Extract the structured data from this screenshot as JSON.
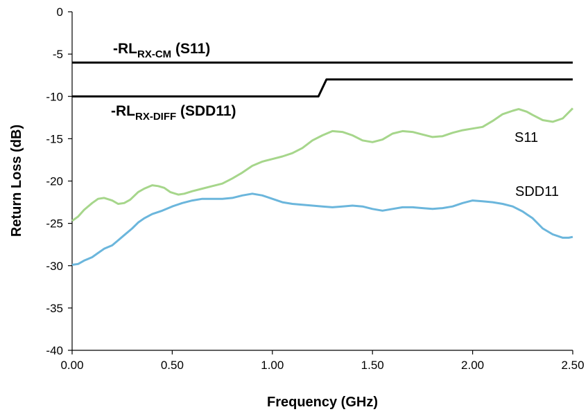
{
  "chart_data": {
    "type": "line",
    "title": "",
    "xlabel": "Frequency (GHz)",
    "ylabel": "Return Loss (dB)",
    "xlim": [
      0,
      2.5
    ],
    "ylim": [
      -40,
      0
    ],
    "grid": false,
    "x_ticks": [
      0,
      0.5,
      1.0,
      1.5,
      2.0,
      2.5
    ],
    "x_tick_labels": [
      "0.00",
      "0.50",
      "1.00",
      "1.50",
      "2.00",
      "2.50"
    ],
    "y_ticks": [
      0,
      -5,
      -10,
      -15,
      -20,
      -25,
      -30,
      -35,
      -40
    ],
    "y_tick_labels": [
      "0",
      "-5",
      "-10",
      "-15",
      "-20",
      "-25",
      "-30",
      "-35",
      "-40"
    ],
    "series": [
      {
        "name": "S11",
        "color": "#a6d68b",
        "x": [
          0.0,
          0.03,
          0.06,
          0.1,
          0.13,
          0.16,
          0.2,
          0.23,
          0.26,
          0.29,
          0.33,
          0.36,
          0.4,
          0.43,
          0.46,
          0.49,
          0.53,
          0.56,
          0.6,
          0.65,
          0.7,
          0.75,
          0.8,
          0.85,
          0.9,
          0.95,
          1.0,
          1.05,
          1.1,
          1.15,
          1.2,
          1.25,
          1.3,
          1.35,
          1.4,
          1.45,
          1.5,
          1.55,
          1.6,
          1.65,
          1.7,
          1.75,
          1.8,
          1.85,
          1.9,
          1.95,
          2.0,
          2.05,
          2.1,
          2.15,
          2.2,
          2.23,
          2.27,
          2.3,
          2.35,
          2.4,
          2.45,
          2.5
        ],
        "y": [
          -24.7,
          -24.2,
          -23.4,
          -22.6,
          -22.1,
          -22.0,
          -22.3,
          -22.7,
          -22.6,
          -22.2,
          -21.3,
          -20.9,
          -20.5,
          -20.6,
          -20.8,
          -21.3,
          -21.6,
          -21.5,
          -21.2,
          -20.9,
          -20.6,
          -20.3,
          -19.7,
          -19.0,
          -18.2,
          -17.7,
          -17.4,
          -17.1,
          -16.7,
          -16.1,
          -15.2,
          -14.6,
          -14.1,
          -14.2,
          -14.6,
          -15.2,
          -15.4,
          -15.1,
          -14.4,
          -14.1,
          -14.2,
          -14.5,
          -14.8,
          -14.7,
          -14.3,
          -14.0,
          -13.8,
          -13.6,
          -12.9,
          -12.1,
          -11.7,
          -11.5,
          -11.8,
          -12.2,
          -12.8,
          -13.0,
          -12.6,
          -11.4
        ]
      },
      {
        "name": "SDD11",
        "color": "#6bb6dc",
        "x": [
          0.0,
          0.03,
          0.06,
          0.1,
          0.13,
          0.16,
          0.2,
          0.23,
          0.26,
          0.3,
          0.33,
          0.36,
          0.4,
          0.45,
          0.5,
          0.55,
          0.6,
          0.65,
          0.7,
          0.75,
          0.8,
          0.85,
          0.9,
          0.95,
          1.0,
          1.05,
          1.1,
          1.15,
          1.2,
          1.25,
          1.3,
          1.35,
          1.4,
          1.45,
          1.5,
          1.55,
          1.6,
          1.65,
          1.7,
          1.75,
          1.8,
          1.85,
          1.9,
          1.95,
          2.0,
          2.05,
          2.1,
          2.15,
          2.2,
          2.25,
          2.3,
          2.35,
          2.4,
          2.45,
          2.48,
          2.5
        ],
        "y": [
          -29.9,
          -29.8,
          -29.4,
          -29.0,
          -28.5,
          -28.0,
          -27.6,
          -27.0,
          -26.4,
          -25.6,
          -24.9,
          -24.4,
          -23.9,
          -23.5,
          -23.0,
          -22.6,
          -22.3,
          -22.1,
          -22.1,
          -22.1,
          -22.0,
          -21.7,
          -21.5,
          -21.7,
          -22.1,
          -22.5,
          -22.7,
          -22.8,
          -22.9,
          -23.0,
          -23.1,
          -23.0,
          -22.9,
          -23.0,
          -23.3,
          -23.5,
          -23.3,
          -23.1,
          -23.1,
          -23.2,
          -23.3,
          -23.2,
          -23.0,
          -22.6,
          -22.3,
          -22.4,
          -22.5,
          -22.7,
          -23.0,
          -23.6,
          -24.4,
          -25.6,
          -26.3,
          -26.7,
          -26.7,
          -26.6
        ]
      },
      {
        "name": "-RLRX-CM (S11)",
        "color": "#000000",
        "x": [
          0,
          2.5
        ],
        "y": [
          -6,
          -6
        ]
      },
      {
        "name": "-RLRX-DIFF (SDD11)",
        "color": "#000000",
        "x": [
          0,
          1.23,
          1.27,
          2.5
        ],
        "y": [
          -10,
          -10,
          -8,
          -8
        ]
      }
    ],
    "annotations": {
      "s11": "S11",
      "sdd11": "SDD11",
      "cm_prefix": "-RL",
      "cm_sub": "RX-CM",
      "cm_suffix": " (S11)",
      "diff_prefix": "-RL",
      "diff_sub": "RX-DIFF",
      "diff_suffix": " (SDD11)"
    }
  }
}
